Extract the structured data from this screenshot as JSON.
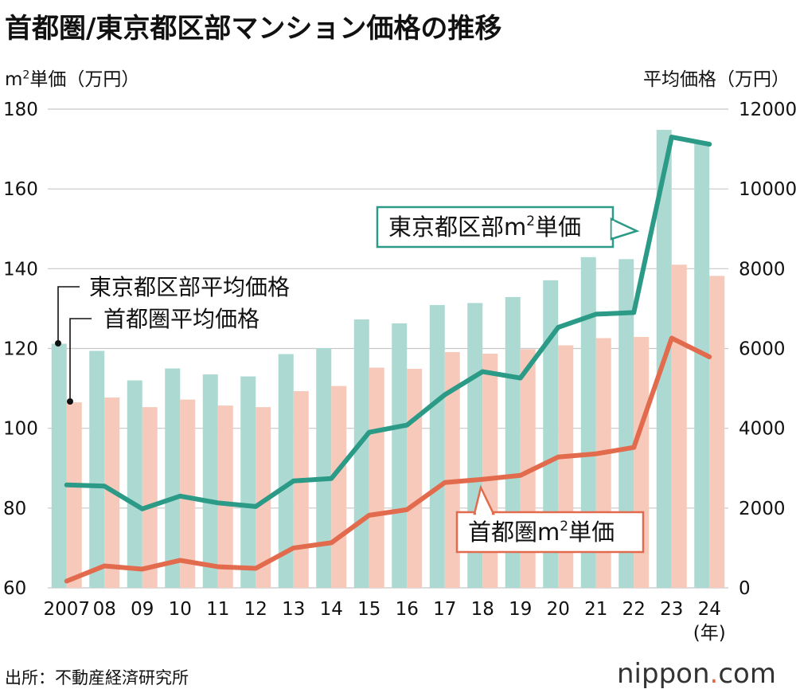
{
  "title": "首都圏/東京都区部マンション価格の推移",
  "ylabel_left_main": "m",
  "ylabel_left_sup": "2",
  "ylabel_left_rest": "単価（万円）",
  "ylabel_right": "平均価格（万円）",
  "source": "出所：不動産経済研究所",
  "brand": {
    "name": "nippon",
    "dot": ".",
    "suffix": "com"
  },
  "colors": {
    "teal_line": "#2b9a86",
    "teal_bar": "#acd9d2",
    "orange_line": "#e36b4d",
    "pink_bar": "#f6c9bb",
    "grid": "#c8c8c8"
  },
  "chart_data": {
    "type": "bar+line",
    "categories": [
      "2007",
      "08",
      "09",
      "10",
      "11",
      "12",
      "13",
      "14",
      "15",
      "16",
      "17",
      "18",
      "19",
      "20",
      "21",
      "22",
      "23",
      "24"
    ],
    "x_unit_label": "(年)",
    "left_axis": {
      "label": "m²単価（万円）",
      "range": [
        60,
        180
      ],
      "ticks": [
        60,
        80,
        100,
        120,
        140,
        160,
        180
      ]
    },
    "right_axis": {
      "label": "平均価格（万円）",
      "range": [
        0,
        12000
      ],
      "ticks": [
        0,
        2000,
        4000,
        6000,
        8000,
        10000,
        12000
      ]
    },
    "bar_series": [
      {
        "name": "東京都区部平均価格",
        "axis": "right",
        "color": "#acd9d2",
        "values": [
          6120,
          5940,
          5200,
          5500,
          5350,
          5300,
          5860,
          6010,
          6730,
          6630,
          7090,
          7140,
          7290,
          7710,
          8290,
          8240,
          11480,
          11180
        ]
      },
      {
        "name": "首都圏平均価格",
        "axis": "right",
        "color": "#f6c9bb",
        "values": [
          4650,
          4770,
          4530,
          4720,
          4570,
          4530,
          4930,
          5060,
          5520,
          5490,
          5910,
          5870,
          5980,
          6080,
          6260,
          6290,
          8100,
          7820
        ]
      }
    ],
    "line_series": [
      {
        "name": "東京都区部m²単価",
        "axis": "left",
        "color": "#2b9a86",
        "values": [
          85.8,
          85.5,
          79.8,
          83.0,
          81.3,
          80.4,
          86.8,
          87.4,
          99.0,
          100.8,
          108.4,
          114.2,
          112.6,
          125.3,
          128.6,
          129.0,
          173.0,
          171.2
        ]
      },
      {
        "name": "首都圏m²単価",
        "axis": "left",
        "color": "#e36b4d",
        "values": [
          61.7,
          65.5,
          64.7,
          66.9,
          65.3,
          64.9,
          70.0,
          71.3,
          78.2,
          79.6,
          86.4,
          87.2,
          88.2,
          92.8,
          93.6,
          95.2,
          122.6,
          117.9
        ]
      }
    ],
    "legend": {
      "bars": [
        "東京都区部平均価格",
        "首都圏平均価格"
      ],
      "lines": [
        {
          "main": "東京都区部m",
          "sup": "2",
          "rest": "単価"
        },
        {
          "main": "首都圏m",
          "sup": "2",
          "rest": "単価"
        }
      ]
    }
  }
}
